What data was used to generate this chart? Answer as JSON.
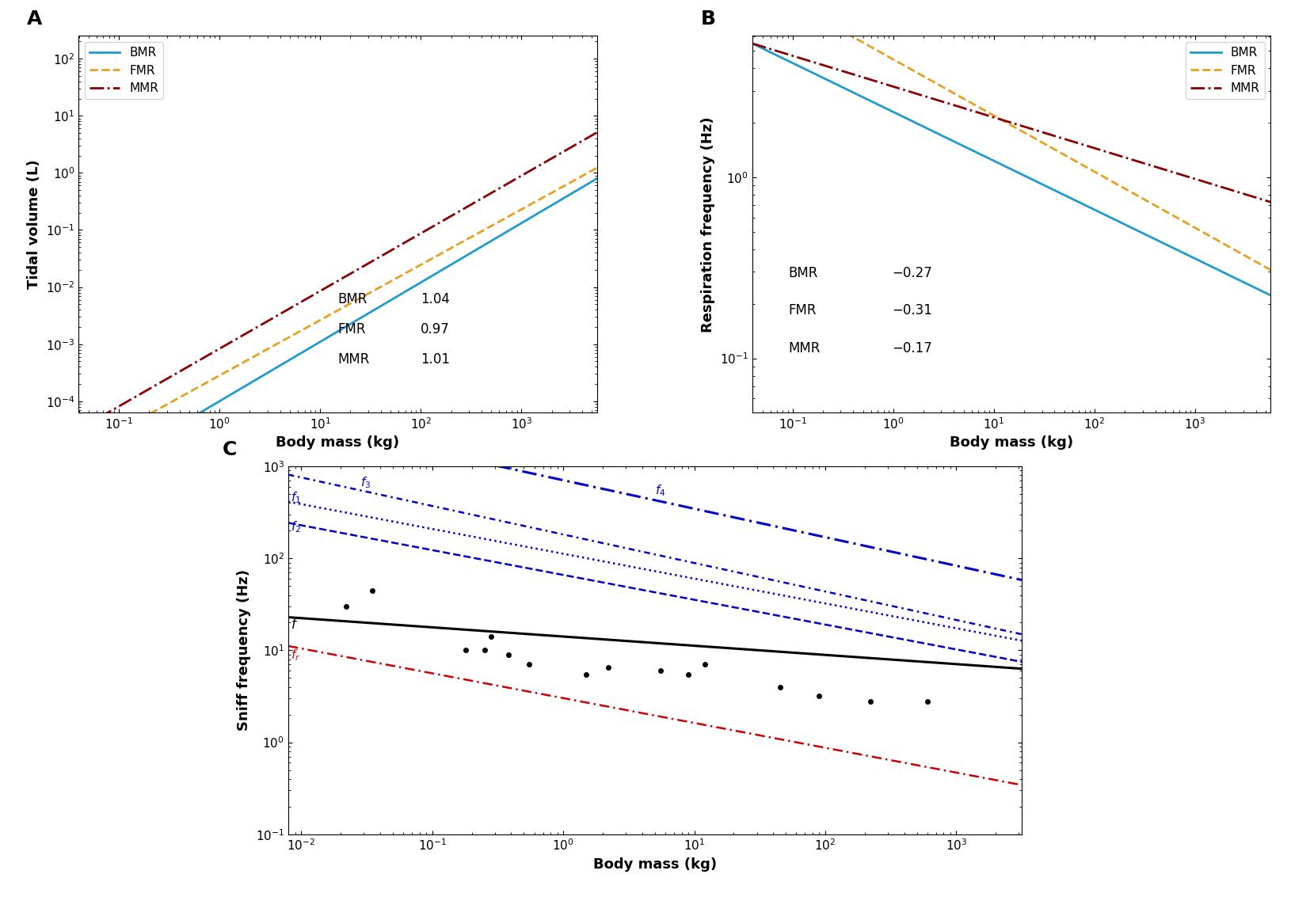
{
  "panel_A": {
    "title": "A",
    "xlabel": "Body mass (kg)",
    "ylabel": "Tidal volume (L)",
    "xlim_log": [
      -1.4,
      3.75
    ],
    "ylim_log": [
      -4.2,
      2.4
    ],
    "lines": {
      "BMR": {
        "color": "#1f9bcf",
        "linestyle": "solid",
        "lw": 2.0,
        "intercept_log": -4.0,
        "slope": 1.04
      },
      "FMR": {
        "color": "#e8a020",
        "linestyle": "dashed",
        "lw": 2.0,
        "intercept_log": -3.55,
        "slope": 0.97
      },
      "MMR": {
        "color": "#8b0000",
        "linestyle": "dashdot",
        "lw": 2.0,
        "intercept_log": -3.08,
        "slope": 1.01
      }
    },
    "slope_labels": [
      {
        "name": "BMR",
        "value": "1.04"
      },
      {
        "name": "FMR",
        "value": "0.97"
      },
      {
        "name": "MMR",
        "value": "1.01"
      }
    ]
  },
  "panel_B": {
    "title": "B",
    "xlabel": "Body mass (kg)",
    "ylabel": "Respiration frequency (Hz)",
    "xlim_log": [
      -1.4,
      3.75
    ],
    "ylim_log": [
      -1.3,
      0.78
    ],
    "lines": {
      "BMR": {
        "color": "#1f9bcf",
        "linestyle": "solid",
        "lw": 2.0,
        "intercept_log": 0.36,
        "slope": -0.27
      },
      "FMR": {
        "color": "#e8a020",
        "linestyle": "dashed",
        "lw": 2.0,
        "intercept_log": 0.65,
        "slope": -0.31
      },
      "MMR": {
        "color": "#8b0000",
        "linestyle": "dashdot",
        "lw": 2.0,
        "intercept_log": 0.5,
        "slope": -0.17
      }
    },
    "slope_labels": [
      {
        "name": "BMR",
        "value": "-0.27"
      },
      {
        "name": "FMR",
        "value": "-0.31"
      },
      {
        "name": "MMR",
        "value": "-0.17"
      }
    ]
  },
  "panel_C": {
    "title": "C",
    "xlabel": "Body mass (kg)",
    "ylabel": "Sniff frequency (Hz)",
    "xlim_log": [
      -2.1,
      3.5
    ],
    "ylim_log": [
      -1.0,
      3.0
    ],
    "line_f": {
      "color": "#000000",
      "linestyle": "solid",
      "lw": 2.2,
      "intercept_log": 1.15,
      "slope": -0.1
    },
    "line_f1": {
      "color": "#0000cc",
      "linestyle": "dotted",
      "lw": 1.8,
      "intercept_log": 2.05,
      "slope": -0.27
    },
    "line_f2": {
      "color": "#0000cc",
      "linestyle": "dashed",
      "lw": 1.8,
      "intercept_log": 1.82,
      "slope": -0.27
    },
    "line_f3": {
      "color": "#0000cc",
      "linestyle": [
        0,
        [
          3,
          2,
          1,
          2
        ]
      ],
      "lw": 1.8,
      "intercept_log": 2.26,
      "slope": -0.31
    },
    "line_f4": {
      "color": "#0000cc",
      "linestyle": [
        0,
        [
          6,
          2,
          1,
          2
        ]
      ],
      "lw": 2.2,
      "intercept_log": 2.85,
      "slope": -0.31
    },
    "line_fr": {
      "color": "#cc0000",
      "linestyle": [
        0,
        [
          5,
          2,
          1,
          2
        ]
      ],
      "lw": 1.8,
      "intercept_log": 0.48,
      "slope": -0.27
    },
    "data_points": [
      [
        0.022,
        30
      ],
      [
        0.035,
        45
      ],
      [
        0.25,
        10
      ],
      [
        0.28,
        14
      ],
      [
        0.38,
        9
      ],
      [
        0.18,
        10
      ],
      [
        0.55,
        7
      ],
      [
        1.5,
        5.5
      ],
      [
        2.2,
        6.5
      ],
      [
        5.5,
        6
      ],
      [
        9.0,
        5.5
      ],
      [
        12.0,
        7
      ],
      [
        45.0,
        4
      ],
      [
        90.0,
        3.2
      ],
      [
        220.0,
        2.8
      ],
      [
        600.0,
        2.8
      ]
    ]
  },
  "bmr_color": "#1f9bcf",
  "fmr_color": "#e8a020",
  "mmr_color": "#8b0000",
  "background": "#ffffff"
}
